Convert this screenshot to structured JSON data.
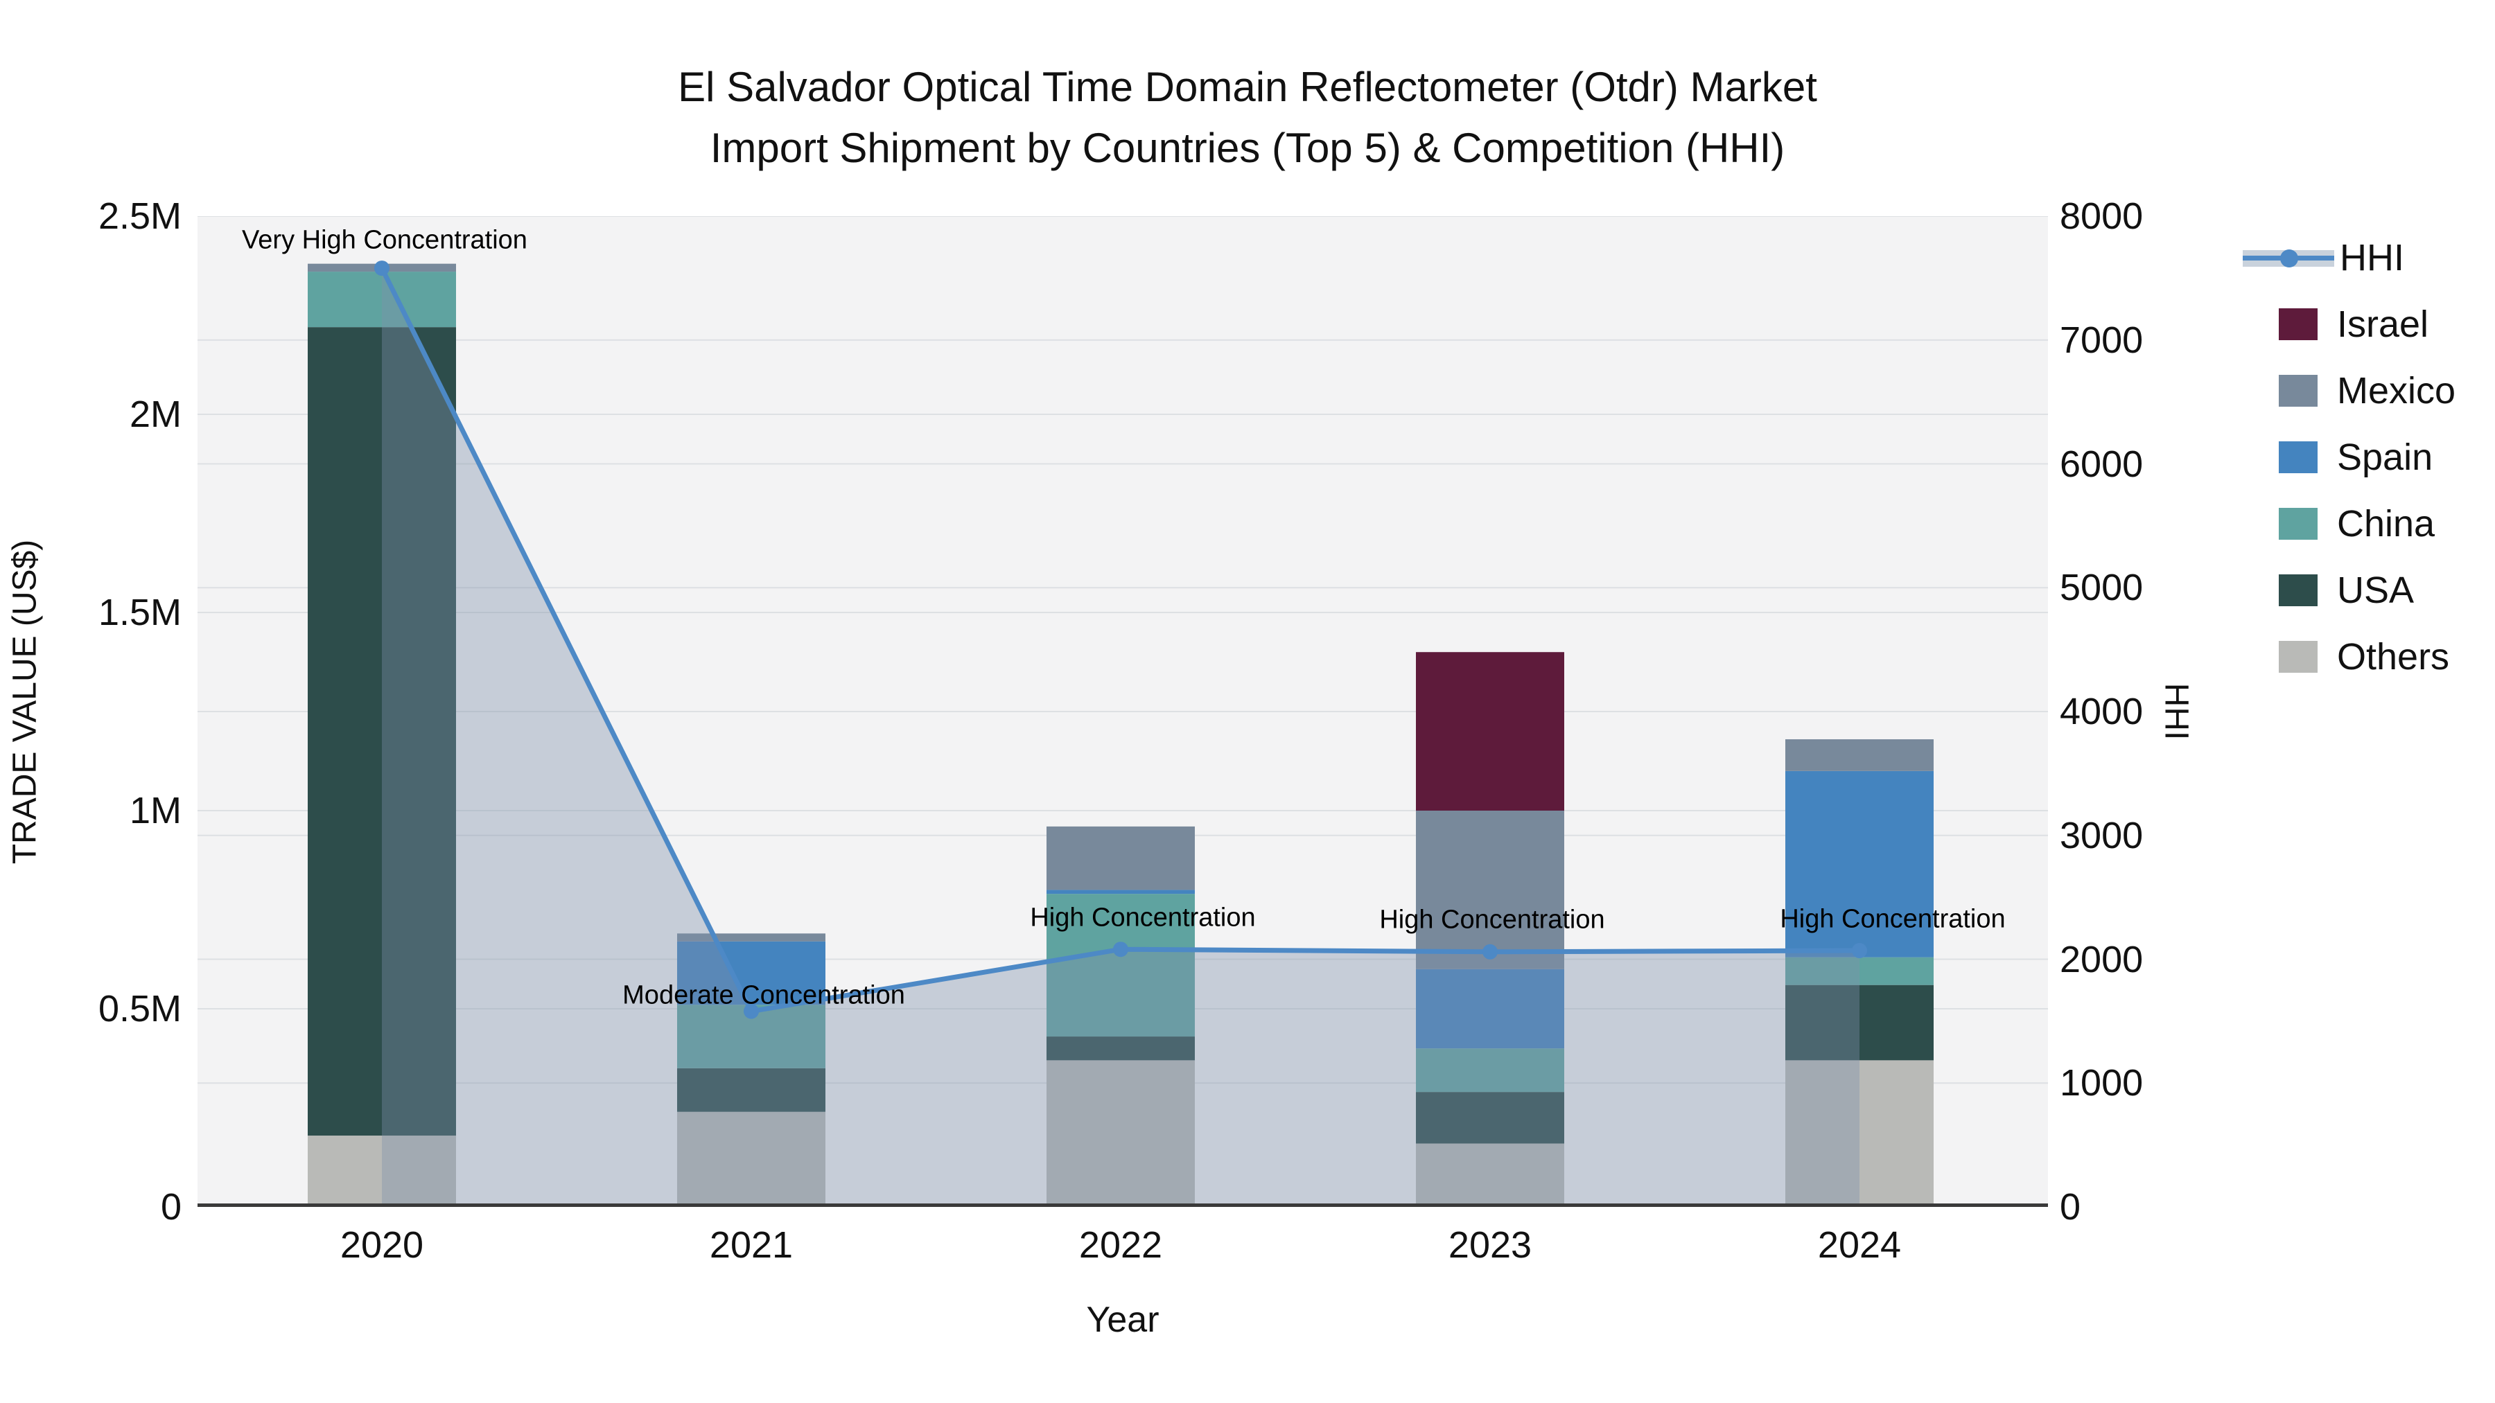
{
  "title": {
    "line1": "El Salvador Optical Time Domain Reflectometer (Otdr) Market",
    "line2": "Import Shipment by Countries (Top 5) & Competition (HHI)"
  },
  "axes": {
    "y_left": {
      "label": "TRADE VALUE (US$)",
      "ticks": [
        {
          "label": "0",
          "value": 0
        },
        {
          "label": "0.5M",
          "value": 0.5
        },
        {
          "label": "1M",
          "value": 1
        },
        {
          "label": "1.5M",
          "value": 1.5
        },
        {
          "label": "2M",
          "value": 2
        },
        {
          "label": "2.5M",
          "value": 2.5
        }
      ],
      "max": 2.5
    },
    "y_right": {
      "label": "HHI",
      "ticks": [
        {
          "label": "0",
          "value": 0
        },
        {
          "label": "1000",
          "value": 1000
        },
        {
          "label": "2000",
          "value": 2000
        },
        {
          "label": "3000",
          "value": 3000
        },
        {
          "label": "4000",
          "value": 4000
        },
        {
          "label": "5000",
          "value": 5000
        },
        {
          "label": "6000",
          "value": 6000
        },
        {
          "label": "7000",
          "value": 7000
        },
        {
          "label": "8000",
          "value": 8000
        }
      ],
      "max": 8000
    },
    "x": {
      "label": "Year",
      "categories": [
        "2020",
        "2021",
        "2022",
        "2023",
        "2024"
      ]
    }
  },
  "colors": {
    "plot_bg": "#f3f3f4",
    "grid": "#dde0e3",
    "axis_line": "#3a3a3a",
    "hhi_line": "#4d89c6",
    "hhi_fill": "rgba(125,145,170,0.38)",
    "hhi_band": "#c9d2dc"
  },
  "chart_data": {
    "type": "bar",
    "subtype": "stacked-bars-with-line",
    "categories": [
      "2020",
      "2021",
      "2022",
      "2023",
      "2024"
    ],
    "value_unit": "millions US$",
    "series": [
      {
        "name": "Others",
        "color": "#b9bab7",
        "values": [
          0.18,
          0.24,
          0.37,
          0.16,
          0.37
        ]
      },
      {
        "name": "USA",
        "color": "#2d4d4b",
        "values": [
          2.04,
          0.11,
          0.06,
          0.13,
          0.19
        ]
      },
      {
        "name": "China",
        "color": "#5fa3a0",
        "values": [
          0.14,
          0.16,
          0.36,
          0.11,
          0.07
        ]
      },
      {
        "name": "Spain",
        "color": "#4484bf",
        "values": [
          0.0,
          0.16,
          0.01,
          0.2,
          0.47
        ]
      },
      {
        "name": "Mexico",
        "color": "#78899b",
        "values": [
          0.02,
          0.02,
          0.16,
          0.4,
          0.08
        ]
      },
      {
        "name": "Israel",
        "color": "#5e1b3b",
        "values": [
          0.0,
          0.0,
          0.0,
          0.4,
          0.0
        ]
      }
    ],
    "totals": [
      2.38,
      0.69,
      0.96,
      1.4,
      1.18
    ],
    "line_series": {
      "name": "HHI",
      "color": "#4d89c6",
      "values": [
        7580,
        1580,
        2080,
        2060,
        2070
      ],
      "axis": "right"
    },
    "ylim_left": [
      0,
      2.5
    ],
    "ylim_right": [
      0,
      8000
    ],
    "grid": true,
    "legend_position": "right"
  },
  "annotations": [
    {
      "text": "Very High Concentration",
      "category": "2020"
    },
    {
      "text": "Moderate Concentration",
      "category": "2021"
    },
    {
      "text": "High Concentration",
      "category": "2022"
    },
    {
      "text": "High Concentration",
      "category": "2023"
    },
    {
      "text": "High Concentration",
      "category": "2024"
    }
  ],
  "legend": [
    {
      "label": "HHI",
      "type": "line",
      "color": "#4d89c6"
    },
    {
      "label": "Israel",
      "type": "patch",
      "color": "#5e1b3b"
    },
    {
      "label": "Mexico",
      "type": "patch",
      "color": "#78899b"
    },
    {
      "label": "Spain",
      "type": "patch",
      "color": "#4484bf"
    },
    {
      "label": "China",
      "type": "patch",
      "color": "#5fa3a0"
    },
    {
      "label": "USA",
      "type": "patch",
      "color": "#2d4d4b"
    },
    {
      "label": "Others",
      "type": "patch",
      "color": "#b9bab7"
    }
  ]
}
